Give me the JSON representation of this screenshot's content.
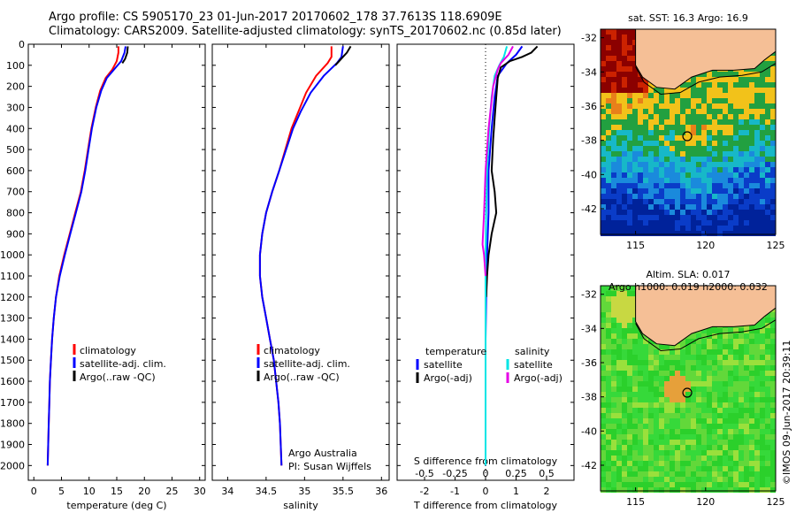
{
  "header": {
    "line1": "Argo profile: CS 5905170_23 01-Jun-2017 20170602_178 37.7613S 118.6909E",
    "line2": "Climatology: CARS2009. Satellite-adjusted climatology: synTS_20170602.nc (0.85d later)"
  },
  "colors": {
    "climatology": "#ff0000",
    "satellite": "#0000ff",
    "argo": "#000000",
    "sal_satellite": "#00e5e5",
    "sal_argo": "#e600e6",
    "land": "#f5bf96"
  },
  "chart_data": [
    {
      "type": "line",
      "name_key": "temperature",
      "xlabel": "temperature (deg C)",
      "ylabel": "",
      "xlim": [
        -1,
        31
      ],
      "ylim": [
        2070,
        0
      ],
      "xticks": [
        0,
        5,
        10,
        15,
        20,
        25,
        30
      ],
      "yticks": [
        0,
        100,
        200,
        300,
        400,
        500,
        600,
        700,
        800,
        900,
        1000,
        1100,
        1200,
        1300,
        1400,
        1500,
        1600,
        1700,
        1800,
        1900,
        2000
      ],
      "legend": [
        "climatology",
        "satellite-adj. clim.",
        "Argo(..raw -QC)"
      ],
      "series": [
        {
          "name": "climatology",
          "color": "#ff0000",
          "points": [
            [
              15.3,
              10
            ],
            [
              15.3,
              40
            ],
            [
              15.0,
              80
            ],
            [
              14.2,
              120
            ],
            [
              13.0,
              160
            ],
            [
              12.0,
              220
            ],
            [
              11.2,
              300
            ],
            [
              10.4,
              400
            ],
            [
              9.8,
              500
            ],
            [
              9.2,
              600
            ],
            [
              8.5,
              700
            ],
            [
              7.5,
              800
            ],
            [
              6.5,
              900
            ],
            [
              5.5,
              1000
            ],
            [
              4.6,
              1100
            ],
            [
              4.0,
              1200
            ],
            [
              3.6,
              1300
            ],
            [
              3.3,
              1400
            ],
            [
              3.1,
              1500
            ],
            [
              2.9,
              1600
            ],
            [
              2.8,
              1700
            ],
            [
              2.7,
              1800
            ],
            [
              2.6,
              1900
            ],
            [
              2.5,
              2000
            ]
          ]
        },
        {
          "name": "satellite-adj. clim.",
          "color": "#0000ff",
          "points": [
            [
              16.6,
              10
            ],
            [
              16.4,
              40
            ],
            [
              15.8,
              80
            ],
            [
              14.5,
              120
            ],
            [
              13.2,
              160
            ],
            [
              12.2,
              220
            ],
            [
              11.3,
              300
            ],
            [
              10.5,
              400
            ],
            [
              9.9,
              500
            ],
            [
              9.3,
              600
            ],
            [
              8.6,
              700
            ],
            [
              7.6,
              800
            ],
            [
              6.6,
              900
            ],
            [
              5.6,
              1000
            ],
            [
              4.7,
              1100
            ],
            [
              4.0,
              1200
            ],
            [
              3.6,
              1300
            ],
            [
              3.3,
              1400
            ],
            [
              3.1,
              1500
            ],
            [
              2.9,
              1600
            ],
            [
              2.8,
              1700
            ],
            [
              2.7,
              1800
            ],
            [
              2.6,
              1900
            ],
            [
              2.5,
              2000
            ]
          ]
        },
        {
          "name": "Argo(..raw -QC)",
          "color": "#000000",
          "points": [
            [
              17.0,
              10
            ],
            [
              16.9,
              40
            ],
            [
              16.5,
              70
            ],
            [
              16.0,
              90
            ]
          ]
        }
      ]
    },
    {
      "type": "line",
      "name_key": "salinity",
      "xlabel": "salinity",
      "ylabel": "",
      "xlim": [
        33.8,
        36.1
      ],
      "ylim": [
        2070,
        0
      ],
      "xticks": [
        34,
        34.5,
        35,
        35.5,
        36
      ],
      "yticks": [
        0,
        100,
        200,
        300,
        400,
        500,
        600,
        700,
        800,
        900,
        1000,
        1100,
        1200,
        1300,
        1400,
        1500,
        1600,
        1700,
        1800,
        1900,
        2000
      ],
      "legend": [
        "climatology",
        "satellite-adj. clim.",
        "Argo(..raw -QC)"
      ],
      "annotation": [
        "Argo Australia",
        "PI: Susan Wijffels"
      ],
      "series": [
        {
          "name": "climatology",
          "color": "#ff0000",
          "points": [
            [
              35.35,
              10
            ],
            [
              35.35,
              60
            ],
            [
              35.3,
              90
            ],
            [
              35.15,
              150
            ],
            [
              35.02,
              230
            ],
            [
              34.92,
              320
            ],
            [
              34.83,
              400
            ],
            [
              34.75,
              500
            ],
            [
              34.67,
              600
            ],
            [
              34.58,
              700
            ],
            [
              34.5,
              800
            ],
            [
              34.45,
              900
            ],
            [
              34.42,
              1000
            ],
            [
              34.42,
              1100
            ],
            [
              34.45,
              1200
            ],
            [
              34.5,
              1300
            ],
            [
              34.55,
              1400
            ],
            [
              34.6,
              1500
            ],
            [
              34.63,
              1600
            ],
            [
              34.66,
              1700
            ],
            [
              34.68,
              1800
            ],
            [
              34.69,
              1900
            ],
            [
              34.7,
              2000
            ]
          ]
        },
        {
          "name": "satellite-adj. clim.",
          "color": "#0000ff",
          "points": [
            [
              35.5,
              10
            ],
            [
              35.48,
              60
            ],
            [
              35.42,
              90
            ],
            [
              35.25,
              150
            ],
            [
              35.08,
              230
            ],
            [
              34.95,
              320
            ],
            [
              34.85,
              400
            ],
            [
              34.76,
              500
            ],
            [
              34.67,
              600
            ],
            [
              34.58,
              700
            ],
            [
              34.5,
              800
            ],
            [
              34.45,
              900
            ],
            [
              34.42,
              1000
            ],
            [
              34.42,
              1100
            ],
            [
              34.45,
              1200
            ],
            [
              34.5,
              1300
            ],
            [
              34.55,
              1400
            ],
            [
              34.6,
              1500
            ],
            [
              34.63,
              1600
            ],
            [
              34.66,
              1700
            ],
            [
              34.68,
              1800
            ],
            [
              34.69,
              1900
            ],
            [
              34.7,
              2000
            ]
          ]
        },
        {
          "name": "Argo(..raw -QC)",
          "color": "#000000",
          "points": [
            [
              35.6,
              10
            ],
            [
              35.55,
              40
            ],
            [
              35.5,
              60
            ],
            [
              35.45,
              80
            ],
            [
              35.4,
              100
            ]
          ]
        }
      ]
    },
    {
      "type": "line",
      "name_key": "difference",
      "xlabel": "T difference from climatology",
      "top_label": "S difference from climatology",
      "xlim": [
        -2.9,
        2.9
      ],
      "ylim": [
        2070,
        0
      ],
      "xticks": [
        -2,
        -1,
        0,
        1,
        2
      ],
      "sticks": [
        -0.5,
        -0.25,
        0,
        0.25,
        0.5
      ],
      "stick_labels": [
        "-0.5",
        "-0.25",
        "0",
        "0.25",
        "0.5"
      ],
      "legend_t": {
        "title": "temperature",
        "items": [
          "satellite",
          "Argo(-adj)"
        ]
      },
      "legend_s": {
        "title": "salinity",
        "items": [
          "satellite",
          "Argo(-adj)"
        ]
      },
      "series": [
        {
          "name": "temperature satellite",
          "color": "#0000ff",
          "points": [
            [
              1.2,
              10
            ],
            [
              1.0,
              50
            ],
            [
              0.7,
              90
            ],
            [
              0.4,
              150
            ],
            [
              0.3,
              250
            ],
            [
              0.2,
              400
            ],
            [
              0.1,
              600
            ],
            [
              0.1,
              800
            ],
            [
              0.05,
              1000
            ],
            [
              0.02,
              1200
            ],
            [
              0,
              1400
            ],
            [
              0,
              1600
            ],
            [
              0,
              1800
            ],
            [
              0,
              2000
            ]
          ]
        },
        {
          "name": "temperature Argo(-adj)",
          "color": "#000000",
          "points": [
            [
              1.7,
              10
            ],
            [
              1.5,
              40
            ],
            [
              1.2,
              60
            ],
            [
              0.8,
              80
            ],
            [
              0.5,
              110
            ],
            [
              0.4,
              160
            ],
            [
              0.35,
              250
            ],
            [
              0.3,
              350
            ],
            [
              0.25,
              450
            ],
            [
              0.2,
              600
            ],
            [
              0.3,
              700
            ],
            [
              0.35,
              800
            ],
            [
              0.2,
              900
            ],
            [
              0.1,
              1000
            ],
            [
              0.05,
              1100
            ],
            [
              0.02,
              1200
            ]
          ]
        },
        {
          "name": "salinity satellite",
          "color": "#00e5e5",
          "points": [
            [
              0.7,
              10
            ],
            [
              0.6,
              60
            ],
            [
              0.45,
              100
            ],
            [
              0.3,
              150
            ],
            [
              0.2,
              250
            ],
            [
              0.12,
              400
            ],
            [
              0.05,
              600
            ],
            [
              0.02,
              800
            ],
            [
              0,
              1000
            ],
            [
              0,
              1300
            ],
            [
              0,
              1600
            ],
            [
              0,
              2000
            ]
          ]
        },
        {
          "name": "salinity Argo(-adj)",
          "color": "#e600e6",
          "points": [
            [
              0.9,
              10
            ],
            [
              0.75,
              50
            ],
            [
              0.5,
              90
            ],
            [
              0.4,
              120
            ],
            [
              0.25,
              200
            ],
            [
              0.1,
              400
            ],
            [
              0,
              600
            ],
            [
              -0.05,
              800
            ],
            [
              -0.1,
              950
            ],
            [
              -0.05,
              1000
            ],
            [
              0,
              1100
            ]
          ]
        }
      ]
    },
    {
      "type": "heatmap",
      "name_key": "sst_map",
      "title": "sat. SST: 16.3 Argo: 16.9",
      "xlim": [
        112.5,
        125
      ],
      "ylim": [
        -43.5,
        -31.5
      ],
      "xticks": [
        115,
        120,
        125
      ],
      "yticks": [
        -32,
        -34,
        -36,
        -38,
        -40,
        -42
      ],
      "marker": {
        "lon": 118.69,
        "lat": -37.76
      }
    },
    {
      "type": "heatmap",
      "name_key": "sla_map",
      "title": "Altim. SLA: 0.017",
      "subtitle": "Argo h1000: 0.019 h2000: 0.032",
      "xlim": [
        112.5,
        125
      ],
      "ylim": [
        -43.5,
        -31.5
      ],
      "xticks": [
        115,
        120,
        125
      ],
      "yticks": [
        -32,
        -34,
        -36,
        -38,
        -40,
        -42
      ],
      "marker": {
        "lon": 118.69,
        "lat": -37.76
      }
    }
  ],
  "watermark": "©IMOS 09-Jun-2017 20:39:11"
}
